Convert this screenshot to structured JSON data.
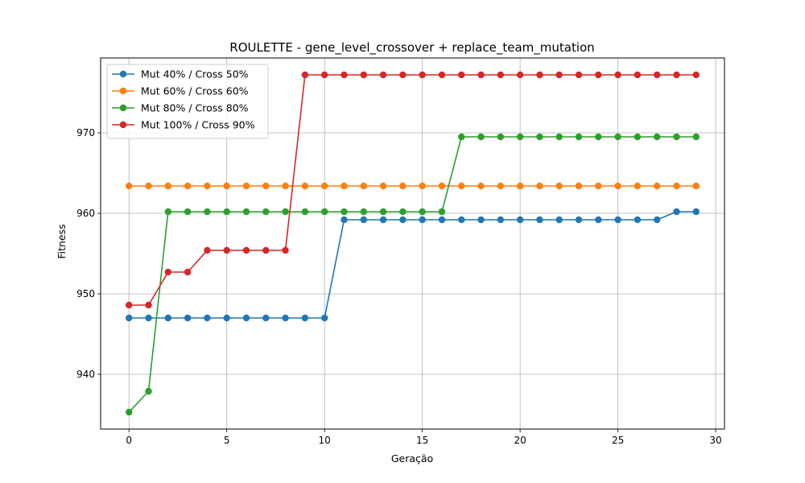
{
  "chart_data": {
    "type": "line",
    "title": "ROULETTE - gene_level_crossover + replace_team_mutation",
    "xlabel": "Geração",
    "ylabel": "Fitness",
    "xlim": [
      -1.45,
      30.45
    ],
    "ylim": [
      933.2,
      979.3
    ],
    "xticks": [
      0,
      5,
      10,
      15,
      20,
      25,
      30
    ],
    "yticks": [
      940,
      950,
      960,
      970
    ],
    "grid": true,
    "legend_position": "top-left",
    "x": [
      0,
      1,
      2,
      3,
      4,
      5,
      6,
      7,
      8,
      9,
      10,
      11,
      12,
      13,
      14,
      15,
      16,
      17,
      18,
      19,
      20,
      21,
      22,
      23,
      24,
      25,
      26,
      27,
      28,
      29
    ],
    "series": [
      {
        "name": "Mut 40% / Cross 50%",
        "color": "#1f77b4",
        "values": [
          947,
          947,
          947,
          947,
          947,
          947,
          947,
          947,
          947,
          947,
          947,
          959.2,
          959.2,
          959.2,
          959.2,
          959.2,
          959.2,
          959.2,
          959.2,
          959.2,
          959.2,
          959.2,
          959.2,
          959.2,
          959.2,
          959.2,
          959.2,
          959.2,
          960.2,
          960.2
        ]
      },
      {
        "name": "Mut 60% / Cross 60%",
        "color": "#ff7f0e",
        "values": [
          963.4,
          963.4,
          963.4,
          963.4,
          963.4,
          963.4,
          963.4,
          963.4,
          963.4,
          963.4,
          963.4,
          963.4,
          963.4,
          963.4,
          963.4,
          963.4,
          963.4,
          963.4,
          963.4,
          963.4,
          963.4,
          963.4,
          963.4,
          963.4,
          963.4,
          963.4,
          963.4,
          963.4,
          963.4,
          963.4
        ]
      },
      {
        "name": "Mut 80% / Cross 80%",
        "color": "#2ca02c",
        "values": [
          935.3,
          937.9,
          960.2,
          960.2,
          960.2,
          960.2,
          960.2,
          960.2,
          960.2,
          960.2,
          960.2,
          960.2,
          960.2,
          960.2,
          960.2,
          960.2,
          960.2,
          969.5,
          969.5,
          969.5,
          969.5,
          969.5,
          969.5,
          969.5,
          969.5,
          969.5,
          969.5,
          969.5,
          969.5,
          969.5
        ]
      },
      {
        "name": "Mut 100% / Cross 90%",
        "color": "#d62728",
        "values": [
          948.6,
          948.6,
          952.7,
          952.7,
          955.4,
          955.4,
          955.4,
          955.4,
          955.4,
          977.2,
          977.2,
          977.2,
          977.2,
          977.2,
          977.2,
          977.2,
          977.2,
          977.2,
          977.2,
          977.2,
          977.2,
          977.2,
          977.2,
          977.2,
          977.2,
          977.2,
          977.2,
          977.2,
          977.2,
          977.2
        ]
      }
    ]
  }
}
